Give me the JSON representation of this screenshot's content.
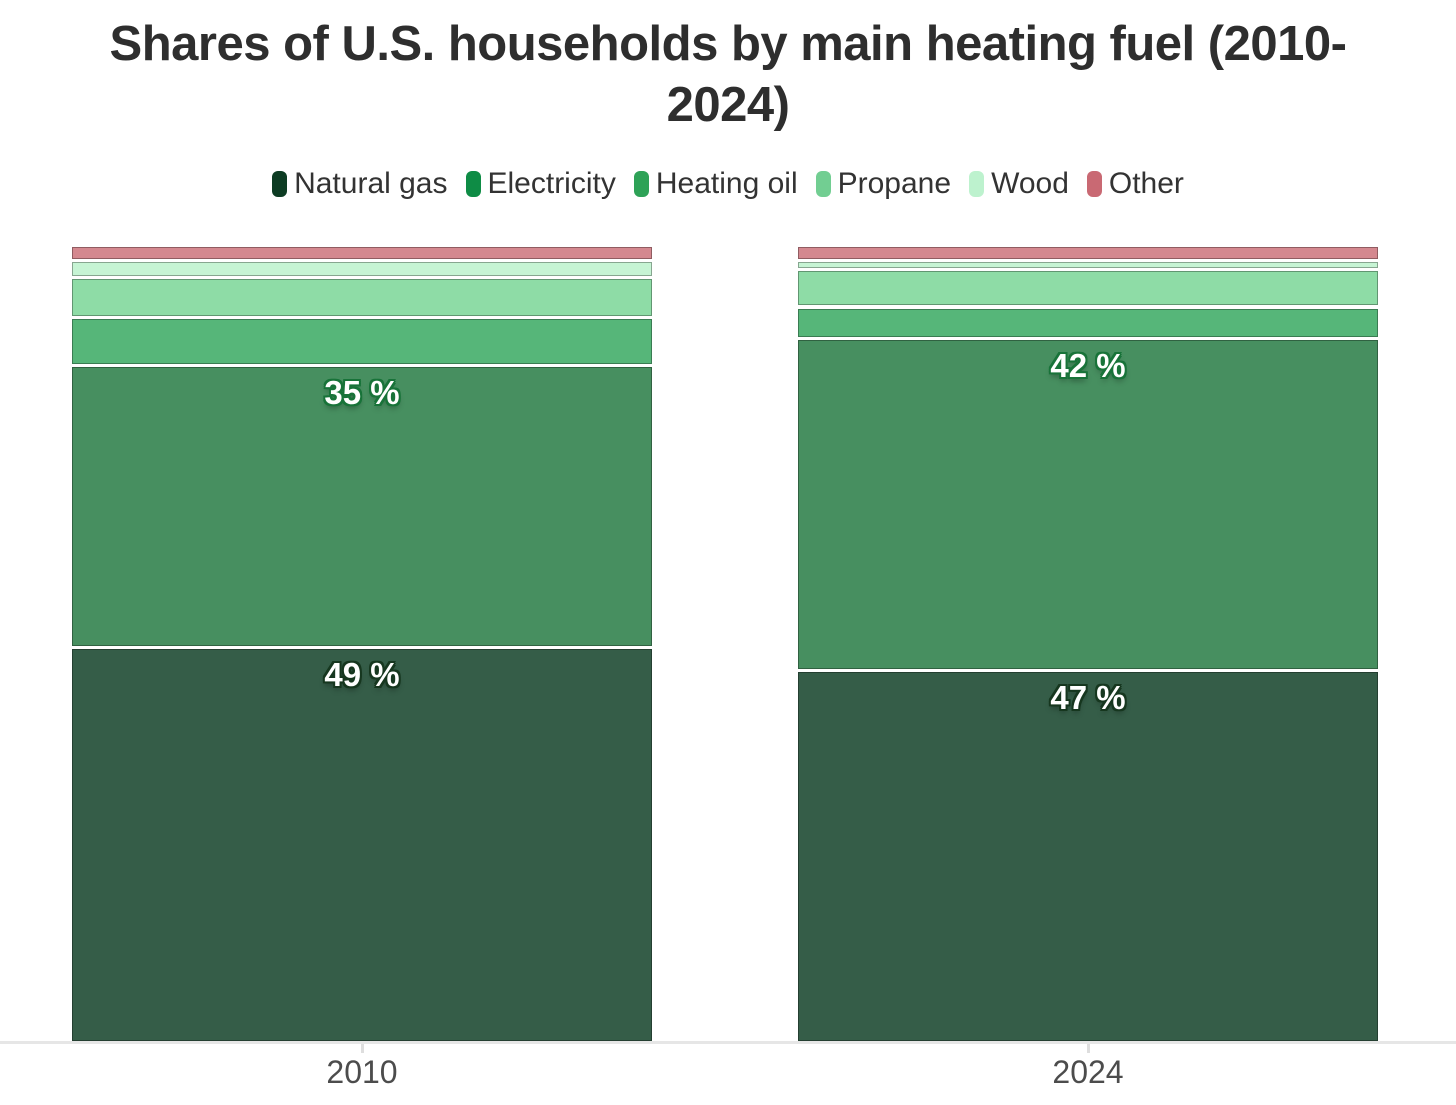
{
  "title": "Shares of U.S. households by main heating fuel (2010-2024)",
  "title_lines": [
    "Shares of U.S. households by main heating fuel (2010-",
    "2024)"
  ],
  "chart_data": {
    "type": "bar",
    "variant": "100%-stacked-column",
    "title": "Shares of U.S. households by main heating fuel (2010-2024)",
    "categories": [
      "2010",
      "2024"
    ],
    "stack_order": "series order is bottom-to-top in each column",
    "series": [
      {
        "name": "Natural gas",
        "values": [
          49,
          47
        ],
        "data_labels": [
          "49 %",
          "47 %"
        ],
        "bar_color": "#355d48",
        "legend_color": "#0d3c23",
        "label_outline_color": "#16371f"
      },
      {
        "name": "Electricity",
        "values": [
          35,
          42
        ],
        "data_labels": [
          "35 %",
          "42 %"
        ],
        "bar_color": "#478f60",
        "legend_color": "#0e8c45",
        "label_outline_color": "#187339"
      },
      {
        "name": "Heating oil",
        "values": [
          6,
          4
        ],
        "data_labels": [
          null,
          null
        ],
        "bar_color": "#56b679",
        "legend_color": "#2ea257"
      },
      {
        "name": "Propane",
        "values": [
          5,
          4.7
        ],
        "data_labels": [
          null,
          null
        ],
        "bar_color": "#8edca6",
        "legend_color": "#72ce92"
      },
      {
        "name": "Wood",
        "values": [
          2.1,
          1.2
        ],
        "data_labels": [
          null,
          null
        ],
        "bar_color": "#c6f4d4",
        "legend_color": "#bdf2ce"
      },
      {
        "name": "Other",
        "values": [
          1.7,
          1.7
        ],
        "data_labels": [
          null,
          null
        ],
        "bar_color": "#d4888f",
        "legend_color": "#c96973"
      }
    ],
    "ylim": [
      0,
      100
    ],
    "grid": false,
    "legend_position": "top-center",
    "x_axis": {
      "labels": [
        "2010",
        "2024"
      ],
      "line_color": "#e6e6e6",
      "tick_color": "#dedede",
      "label_color": "#4c4c4c"
    }
  },
  "colors": {
    "background": "#ffffff",
    "title_text": "#2e2e2e",
    "legend_text": "#333333",
    "data_label_text": "#ffffff",
    "segment_separator": "#ffffff"
  }
}
